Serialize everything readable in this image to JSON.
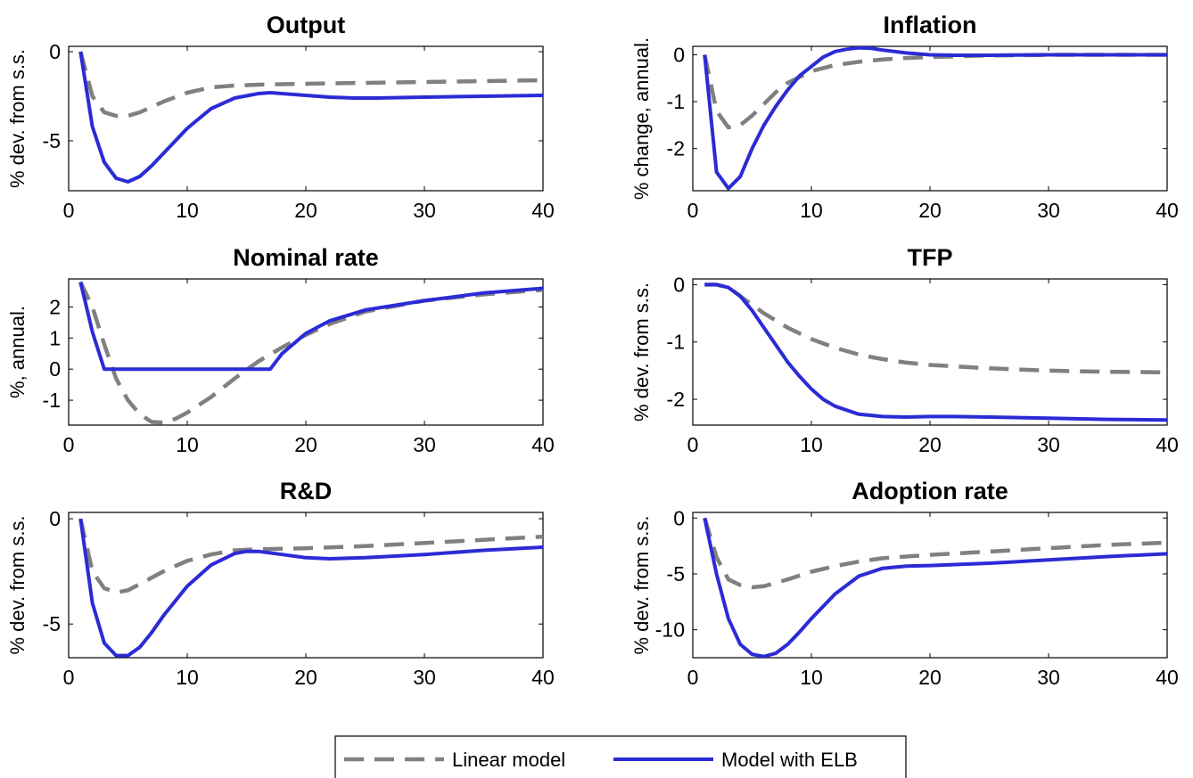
{
  "legend": {
    "linear_label": "Linear model",
    "elb_label": "Model with ELB"
  },
  "colors": {
    "linear": "#808080",
    "elb": "#2b2bd6"
  },
  "chart_data": [
    {
      "type": "line",
      "title": "Output",
      "ylabel": "% dev. from s.s.",
      "xlim": [
        0,
        40
      ],
      "ylim": [
        -7.8,
        0.3
      ],
      "xticks": [
        0,
        10,
        20,
        30,
        40
      ],
      "yticks": [
        0,
        -5
      ],
      "grid": false,
      "legend": "bottom-center (shared)",
      "series": [
        {
          "name": "Linear model",
          "style": "dashed",
          "x": [
            1,
            2,
            3,
            4,
            5,
            6,
            8,
            10,
            12,
            14,
            16,
            20,
            25,
            30,
            35,
            40
          ],
          "y": [
            0,
            -2.5,
            -3.4,
            -3.6,
            -3.6,
            -3.4,
            -2.8,
            -2.3,
            -2.0,
            -1.9,
            -1.85,
            -1.8,
            -1.75,
            -1.7,
            -1.65,
            -1.6
          ]
        },
        {
          "name": "Model with ELB",
          "style": "solid",
          "x": [
            1,
            2,
            3,
            4,
            5,
            6,
            7,
            8,
            10,
            12,
            14,
            16,
            17,
            18,
            20,
            22,
            24,
            26,
            30,
            35,
            40
          ],
          "y": [
            0,
            -4.2,
            -6.2,
            -7.1,
            -7.3,
            -7.0,
            -6.4,
            -5.7,
            -4.3,
            -3.2,
            -2.6,
            -2.35,
            -2.3,
            -2.35,
            -2.45,
            -2.55,
            -2.6,
            -2.6,
            -2.55,
            -2.5,
            -2.45
          ]
        }
      ]
    },
    {
      "type": "line",
      "title": "Inflation",
      "ylabel": "% change, annual.",
      "xlim": [
        0,
        40
      ],
      "ylim": [
        -2.9,
        0.18
      ],
      "xticks": [
        0,
        10,
        20,
        30,
        40
      ],
      "yticks": [
        0,
        -1,
        -2
      ],
      "grid": false,
      "legend": "bottom-center (shared)",
      "series": [
        {
          "name": "Linear model",
          "style": "dashed",
          "x": [
            1,
            2,
            3,
            4,
            5,
            6,
            7,
            8,
            10,
            12,
            14,
            16,
            18,
            20,
            24,
            30,
            40
          ],
          "y": [
            0,
            -1.2,
            -1.55,
            -1.5,
            -1.3,
            -1.05,
            -0.8,
            -0.6,
            -0.35,
            -0.22,
            -0.15,
            -0.1,
            -0.07,
            -0.05,
            -0.02,
            0,
            0
          ]
        },
        {
          "name": "Model with ELB",
          "style": "solid",
          "x": [
            1,
            2,
            3,
            4,
            5,
            6,
            7,
            8,
            9,
            10,
            11,
            12,
            13,
            14,
            15,
            16,
            18,
            20,
            22,
            25,
            30,
            40
          ],
          "y": [
            0,
            -2.5,
            -2.85,
            -2.6,
            -2.0,
            -1.5,
            -1.1,
            -0.75,
            -0.45,
            -0.25,
            -0.05,
            0.07,
            0.12,
            0.15,
            0.14,
            0.1,
            0.04,
            0,
            -0.01,
            -0.01,
            0,
            0
          ]
        }
      ]
    },
    {
      "type": "line",
      "title": "Nominal rate",
      "ylabel": "%, annual.",
      "xlim": [
        0,
        40
      ],
      "ylim": [
        -1.8,
        2.9
      ],
      "xticks": [
        0,
        10,
        20,
        30,
        40
      ],
      "yticks": [
        2,
        1,
        0,
        -1
      ],
      "grid": false,
      "legend": "bottom-center (shared)",
      "series": [
        {
          "name": "Linear model",
          "style": "dashed",
          "x": [
            1,
            2,
            3,
            4,
            5,
            6,
            7,
            8,
            9,
            10,
            12,
            14,
            16,
            18,
            20,
            22,
            25,
            30,
            35,
            40
          ],
          "y": [
            2.8,
            2.0,
            0.8,
            -0.3,
            -1.0,
            -1.45,
            -1.7,
            -1.72,
            -1.6,
            -1.4,
            -0.9,
            -0.3,
            0.25,
            0.7,
            1.1,
            1.45,
            1.85,
            2.2,
            2.4,
            2.55
          ]
        },
        {
          "name": "Model with ELB",
          "style": "solid",
          "x": [
            1,
            2,
            3,
            4,
            5,
            10,
            15,
            17,
            18,
            20,
            22,
            25,
            30,
            35,
            40
          ],
          "y": [
            2.8,
            1.2,
            0,
            0,
            0,
            0,
            0,
            0,
            0.5,
            1.15,
            1.55,
            1.9,
            2.2,
            2.45,
            2.6
          ]
        }
      ]
    },
    {
      "type": "line",
      "title": "TFP",
      "ylabel": "% dev. from s.s.",
      "xlim": [
        0,
        40
      ],
      "ylim": [
        -2.45,
        0.1
      ],
      "xticks": [
        0,
        10,
        20,
        30,
        40
      ],
      "yticks": [
        0,
        -1,
        -2
      ],
      "grid": false,
      "legend": "bottom-center (shared)",
      "series": [
        {
          "name": "Linear model",
          "style": "dashed",
          "x": [
            1,
            2,
            3,
            4,
            6,
            8,
            10,
            12,
            14,
            16,
            18,
            20,
            25,
            30,
            35,
            40
          ],
          "y": [
            0,
            0,
            -0.05,
            -0.2,
            -0.5,
            -0.75,
            -0.95,
            -1.1,
            -1.22,
            -1.3,
            -1.36,
            -1.4,
            -1.46,
            -1.5,
            -1.52,
            -1.53
          ]
        },
        {
          "name": "Model with ELB",
          "style": "solid",
          "x": [
            1,
            2,
            3,
            4,
            5,
            6,
            7,
            8,
            9,
            10,
            11,
            12,
            14,
            16,
            18,
            20,
            22,
            25,
            30,
            35,
            40
          ],
          "y": [
            0,
            0,
            -0.05,
            -0.2,
            -0.45,
            -0.75,
            -1.05,
            -1.35,
            -1.6,
            -1.82,
            -2.0,
            -2.12,
            -2.26,
            -2.3,
            -2.31,
            -2.3,
            -2.3,
            -2.31,
            -2.33,
            -2.35,
            -2.36
          ]
        }
      ]
    },
    {
      "type": "line",
      "title": "R&D",
      "ylabel": "% dev. from s.s.",
      "xlim": [
        0,
        40
      ],
      "ylim": [
        -6.6,
        0.3
      ],
      "xticks": [
        0,
        10,
        20,
        30,
        40
      ],
      "yticks": [
        0,
        -5
      ],
      "grid": false,
      "legend": "bottom-center (shared)",
      "series": [
        {
          "name": "Linear model",
          "style": "dashed",
          "x": [
            1,
            2,
            3,
            4,
            5,
            6,
            8,
            10,
            12,
            14,
            16,
            20,
            25,
            30,
            35,
            40
          ],
          "y": [
            0,
            -2.5,
            -3.3,
            -3.5,
            -3.4,
            -3.1,
            -2.5,
            -2.0,
            -1.7,
            -1.5,
            -1.45,
            -1.4,
            -1.3,
            -1.15,
            -1.0,
            -0.85
          ]
        },
        {
          "name": "Model with ELB",
          "style": "solid",
          "x": [
            1,
            2,
            3,
            4,
            5,
            6,
            7,
            8,
            10,
            12,
            14,
            15,
            16,
            18,
            20,
            22,
            25,
            30,
            35,
            40
          ],
          "y": [
            0,
            -4.0,
            -5.9,
            -6.5,
            -6.5,
            -6.1,
            -5.4,
            -4.6,
            -3.2,
            -2.2,
            -1.65,
            -1.55,
            -1.55,
            -1.7,
            -1.85,
            -1.9,
            -1.85,
            -1.7,
            -1.5,
            -1.35
          ]
        }
      ]
    },
    {
      "type": "line",
      "title": "Adoption rate",
      "ylabel": "% dev. from s.s.",
      "xlim": [
        0,
        40
      ],
      "ylim": [
        -12.5,
        0.5
      ],
      "xticks": [
        0,
        10,
        20,
        30,
        40
      ],
      "yticks": [
        0,
        -5,
        -10
      ],
      "grid": false,
      "legend": "bottom-center (shared)",
      "series": [
        {
          "name": "Linear model",
          "style": "dashed",
          "x": [
            1,
            2,
            3,
            4,
            5,
            6,
            8,
            10,
            12,
            14,
            16,
            20,
            25,
            30,
            35,
            40
          ],
          "y": [
            0,
            -3.5,
            -5.5,
            -6.0,
            -6.2,
            -6.1,
            -5.5,
            -4.8,
            -4.3,
            -3.9,
            -3.6,
            -3.3,
            -3.0,
            -2.7,
            -2.4,
            -2.2
          ]
        },
        {
          "name": "Model with ELB",
          "style": "solid",
          "x": [
            1,
            2,
            3,
            4,
            5,
            6,
            7,
            8,
            9,
            10,
            12,
            14,
            16,
            18,
            20,
            25,
            30,
            35,
            40
          ],
          "y": [
            0,
            -5.0,
            -9.0,
            -11.3,
            -12.2,
            -12.4,
            -12.1,
            -11.3,
            -10.2,
            -9.0,
            -6.8,
            -5.2,
            -4.5,
            -4.3,
            -4.25,
            -4.05,
            -3.75,
            -3.45,
            -3.2
          ]
        }
      ]
    }
  ]
}
